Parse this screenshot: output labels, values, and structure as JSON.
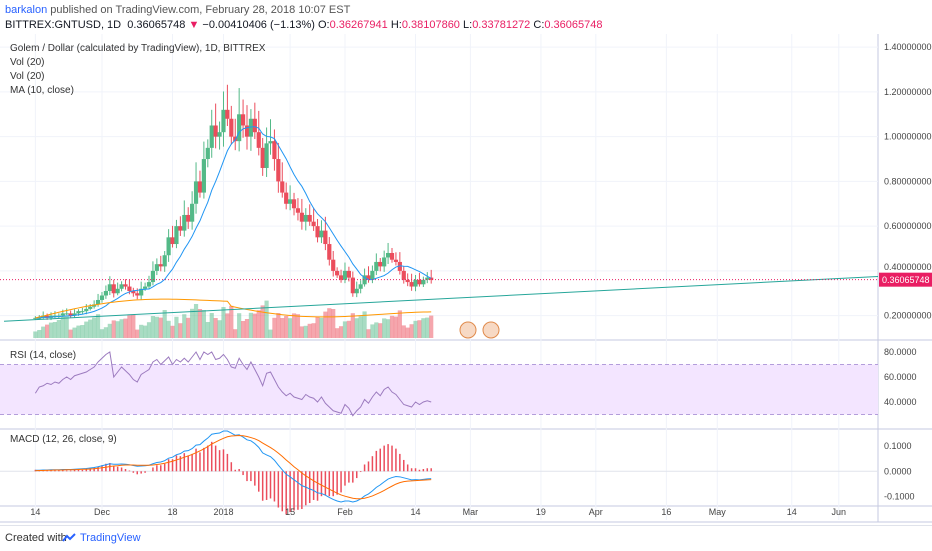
{
  "header": {
    "user": "barkalon",
    "published_text": " published on TradingView.com, February 28, 2018 10:07 EST",
    "symbol": "BITTREX:GNTUSD, 1D",
    "last": "0.36065748",
    "arrow": "▼",
    "change": "−0.00410406 (−1.13%)",
    "o_label": "O:",
    "o_value": "0.36267941",
    "h_label": "H:",
    "h_value": "0.38107860",
    "l_label": "L:",
    "l_value": "0.33781272",
    "c_label": "C:",
    "c_value": "0.36065748"
  },
  "legend": {
    "main_title": "Golem / Dollar (calculated by TradingView), 1D, BITTREX",
    "vol1": "Vol (20)",
    "vol2": "Vol (20)",
    "ma": "MA (10, close)",
    "rsi": "RSI (14, close)",
    "macd": "MACD (12, 26, close, 9)"
  },
  "footer": {
    "created_with": "Created with",
    "brand": "TradingView"
  },
  "colors": {
    "up": "#53b987",
    "down": "#eb4d5c",
    "ma": "#2196f3",
    "trendline": "#26a69a",
    "price_line": "#e91e63",
    "rsi_fill": "#f3e5ff",
    "rsi_line": "#9c7bbf",
    "macd_line": "#2196f3",
    "signal_line": "#ff6d00",
    "vol_ma": "#ff9800"
  },
  "chart_data": [
    {
      "type": "candlestick",
      "title": "Golem / Dollar (calculated by TradingView), 1D, BITTREX",
      "ylim": [
        0.1,
        1.45
      ],
      "y_ticks": [
        "1.40000000",
        "1.20000000",
        "1.00000000",
        "0.80000000",
        "0.60000000",
        "0.40000000",
        "0.20000000"
      ],
      "y_tick_values": [
        1.4,
        1.2,
        1.0,
        0.8,
        0.6,
        0.4,
        0.2
      ],
      "last_price_label": "0.36065748",
      "last_price": 0.3607,
      "x_ticks": [
        "14",
        "Dec",
        "18",
        "2018",
        "15",
        "Feb",
        "14",
        "Mar",
        "19",
        "Apr",
        "16",
        "May",
        "14",
        "Jun"
      ],
      "x_tick_days": [
        0,
        17,
        35,
        48,
        65,
        79,
        97,
        111,
        129,
        143,
        161,
        174,
        193,
        205
      ],
      "start_date": "2017-11-14",
      "x_range_days": [
        -8,
        215
      ],
      "close_series": [
        0.19,
        0.19,
        0.2,
        0.19,
        0.2,
        0.2,
        0.2,
        0.21,
        0.21,
        0.2,
        0.21,
        0.22,
        0.22,
        0.23,
        0.24,
        0.25,
        0.27,
        0.29,
        0.31,
        0.34,
        0.3,
        0.32,
        0.34,
        0.33,
        0.31,
        0.3,
        0.29,
        0.32,
        0.33,
        0.35,
        0.4,
        0.43,
        0.42,
        0.47,
        0.55,
        0.52,
        0.6,
        0.58,
        0.65,
        0.62,
        0.7,
        0.8,
        0.75,
        0.9,
        0.95,
        1.05,
        1.0,
        1.02,
        1.12,
        1.08,
        1.0,
        0.98,
        1.1,
        1.05,
        1.0,
        1.08,
        1.02,
        0.95,
        0.86,
        0.97,
        0.98,
        0.9,
        0.8,
        0.75,
        0.7,
        0.72,
        0.68,
        0.66,
        0.62,
        0.65,
        0.62,
        0.6,
        0.55,
        0.58,
        0.52,
        0.45,
        0.4,
        0.38,
        0.36,
        0.4,
        0.37,
        0.3,
        0.32,
        0.34,
        0.38,
        0.36,
        0.4,
        0.44,
        0.42,
        0.46,
        0.48,
        0.45,
        0.44,
        0.4,
        0.36,
        0.35,
        0.33,
        0.36,
        0.34,
        0.36,
        0.37,
        0.36
      ],
      "ma_label": "MA (10, close)",
      "trendline": {
        "start": [
          -8,
          0.175
        ],
        "end": [
          215,
          0.375
        ]
      }
    },
    {
      "type": "line",
      "name": "RSI (14, close)",
      "ylim": [
        20,
        88
      ],
      "y_ticks": [
        "80.0000",
        "60.0000",
        "40.0000"
      ],
      "y_tick_values": [
        80,
        60,
        40
      ],
      "band": [
        30,
        70
      ],
      "values": [
        47,
        52,
        53,
        55,
        54,
        56,
        55,
        58,
        60,
        58,
        61,
        62,
        63,
        64,
        66,
        68,
        72,
        75,
        78,
        80,
        60,
        64,
        68,
        65,
        62,
        58,
        56,
        62,
        64,
        66,
        72,
        74,
        70,
        73,
        76,
        70,
        74,
        72,
        75,
        72,
        76,
        80,
        74,
        80,
        78,
        80,
        74,
        75,
        78,
        74,
        68,
        67,
        75,
        70,
        66,
        72,
        66,
        60,
        53,
        63,
        64,
        58,
        52,
        48,
        45,
        47,
        44,
        43,
        42,
        46,
        44,
        43,
        40,
        44,
        39,
        36,
        33,
        32,
        31,
        38,
        35,
        29,
        33,
        36,
        42,
        39,
        44,
        48,
        45,
        50,
        52,
        48,
        46,
        42,
        38,
        37,
        36,
        40,
        38,
        40,
        41,
        40
      ]
    },
    {
      "type": "line",
      "name": "MACD (12, 26, close, 9)",
      "ylim": [
        -0.13,
        0.16
      ],
      "y_ticks": [
        "0.1000",
        "0.0000",
        "-0.1000"
      ],
      "y_tick_values": [
        0.1,
        0.0,
        -0.1
      ],
      "macd": [
        0.004,
        0.004,
        0.005,
        0.005,
        0.006,
        0.006,
        0.006,
        0.007,
        0.007,
        0.007,
        0.008,
        0.009,
        0.01,
        0.011,
        0.013,
        0.015,
        0.018,
        0.022,
        0.026,
        0.03,
        0.028,
        0.028,
        0.029,
        0.028,
        0.026,
        0.023,
        0.02,
        0.021,
        0.022,
        0.024,
        0.03,
        0.035,
        0.037,
        0.042,
        0.052,
        0.056,
        0.066,
        0.07,
        0.08,
        0.082,
        0.09,
        0.104,
        0.106,
        0.12,
        0.132,
        0.147,
        0.15,
        0.152,
        0.16,
        0.16,
        0.152,
        0.143,
        0.145,
        0.136,
        0.125,
        0.121,
        0.11,
        0.095,
        0.073,
        0.065,
        0.058,
        0.044,
        0.024,
        0.006,
        -0.012,
        -0.022,
        -0.034,
        -0.045,
        -0.057,
        -0.063,
        -0.07,
        -0.076,
        -0.086,
        -0.088,
        -0.095,
        -0.104,
        -0.112,
        -0.118,
        -0.122,
        -0.118,
        -0.118,
        -0.122,
        -0.118,
        -0.11,
        -0.098,
        -0.09,
        -0.078,
        -0.064,
        -0.054,
        -0.042,
        -0.031,
        -0.025,
        -0.021,
        -0.022,
        -0.026,
        -0.03,
        -0.034,
        -0.033,
        -0.034,
        -0.032,
        -0.03,
        -0.029
      ],
      "signal": [
        0.002,
        0.003,
        0.003,
        0.004,
        0.004,
        0.005,
        0.005,
        0.005,
        0.006,
        0.006,
        0.006,
        0.007,
        0.008,
        0.008,
        0.009,
        0.01,
        0.012,
        0.014,
        0.016,
        0.019,
        0.021,
        0.022,
        0.024,
        0.025,
        0.025,
        0.025,
        0.024,
        0.024,
        0.024,
        0.024,
        0.025,
        0.027,
        0.029,
        0.032,
        0.036,
        0.04,
        0.045,
        0.05,
        0.056,
        0.061,
        0.067,
        0.074,
        0.081,
        0.089,
        0.098,
        0.108,
        0.116,
        0.124,
        0.131,
        0.137,
        0.14,
        0.141,
        0.142,
        0.141,
        0.138,
        0.134,
        0.129,
        0.122,
        0.112,
        0.103,
        0.094,
        0.084,
        0.072,
        0.059,
        0.045,
        0.032,
        0.018,
        0.006,
        -0.007,
        -0.018,
        -0.028,
        -0.038,
        -0.047,
        -0.055,
        -0.063,
        -0.071,
        -0.079,
        -0.087,
        -0.094,
        -0.099,
        -0.103,
        -0.107,
        -0.109,
        -0.109,
        -0.107,
        -0.103,
        -0.098,
        -0.091,
        -0.084,
        -0.076,
        -0.067,
        -0.059,
        -0.051,
        -0.045,
        -0.041,
        -0.039,
        -0.038,
        -0.037,
        -0.036,
        -0.035,
        -0.034,
        -0.033
      ]
    }
  ]
}
